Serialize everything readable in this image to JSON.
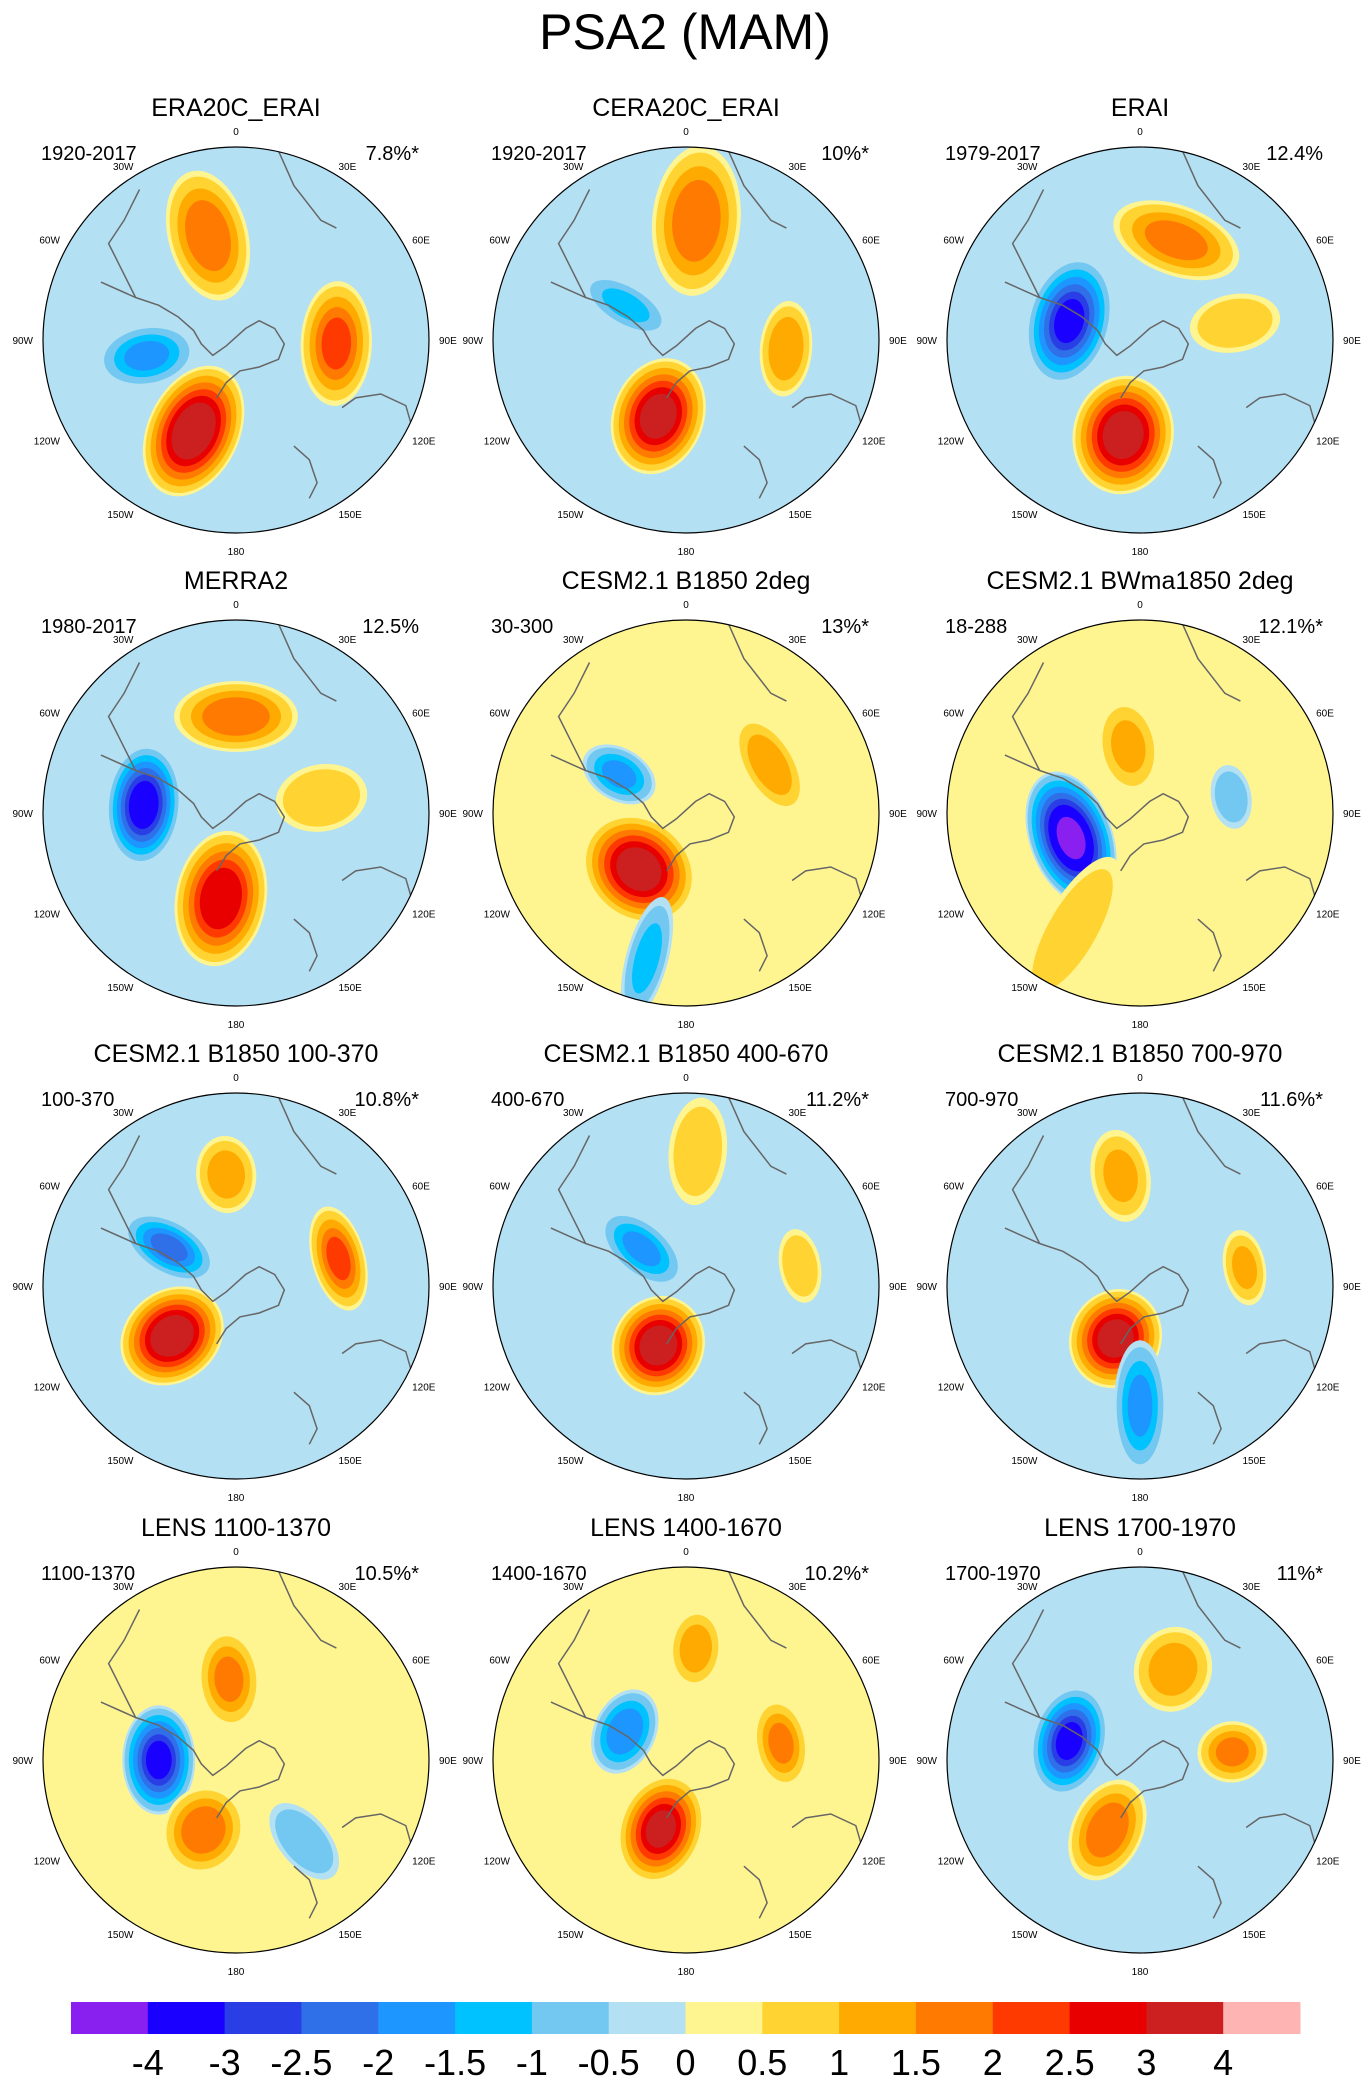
{
  "chart_data": {
    "type": "polar-contour-map",
    "title": "PSA2 (MAM)",
    "colorbar": {
      "labels": [
        "-4",
        "-3",
        "-2.5",
        "-2",
        "-1.5",
        "-1",
        "-0.5",
        "0",
        "0.5",
        "1",
        "1.5",
        "2",
        "2.5",
        "3",
        "4"
      ],
      "colors": [
        "#8a20f0",
        "#1a00ff",
        "#2a3ee6",
        "#2f6fe8",
        "#1e96ff",
        "#00c2ff",
        "#72c8f0",
        "#b4e0f4",
        "#fff590",
        "#ffd331",
        "#ffaa00",
        "#ff7a00",
        "#ff3a00",
        "#e80000",
        "#cc1f1f",
        "#ffb4b4"
      ]
    },
    "longitude_labels": [
      "0",
      "30E",
      "60E",
      "90E",
      "120E",
      "150E",
      "180",
      "150W",
      "120W",
      "90W",
      "60W",
      "30W"
    ],
    "panels": [
      {
        "title": "ERA20C_ERAI",
        "period": "1920-2017",
        "variance": "7.8%*",
        "base": "light-blue",
        "features": [
          {
            "lon": 205,
            "dist": 0.52,
            "peak": 3.5,
            "rx": 0.3,
            "ry": 0.2
          },
          {
            "lon": 260,
            "dist": 0.47,
            "peak": -1.5,
            "rx": 0.22,
            "ry": 0.14
          },
          {
            "lon": 345,
            "dist": 0.56,
            "peak": 1.8,
            "rx": 0.3,
            "ry": 0.18
          },
          {
            "lon": 92,
            "dist": 0.52,
            "peak": 2.0,
            "rx": 0.16,
            "ry": 0.28
          }
        ]
      },
      {
        "title": "CERA20C_ERAI",
        "period": "1920-2017",
        "variance": "10%*",
        "base": "light-blue",
        "features": [
          {
            "lon": 200,
            "dist": 0.42,
            "peak": 3.2,
            "rx": 0.26,
            "ry": 0.2
          },
          {
            "lon": 300,
            "dist": 0.36,
            "peak": -1.0,
            "rx": 0.22,
            "ry": 0.1
          },
          {
            "lon": 5,
            "dist": 0.62,
            "peak": 1.8,
            "rx": 0.34,
            "ry": 0.2
          },
          {
            "lon": 95,
            "dist": 0.52,
            "peak": 1.4,
            "rx": 0.12,
            "ry": 0.22
          }
        ]
      },
      {
        "title": "ERAI",
        "period": "1979-2017",
        "variance": "12.4%",
        "base": "light-blue",
        "features": [
          {
            "lon": 190,
            "dist": 0.5,
            "peak": 3.3,
            "rx": 0.26,
            "ry": 0.22
          },
          {
            "lon": 285,
            "dist": 0.38,
            "peak": -3.0,
            "rx": 0.18,
            "ry": 0.28
          },
          {
            "lon": 20,
            "dist": 0.55,
            "peak": 1.6,
            "rx": 0.16,
            "ry": 0.3
          },
          {
            "lon": 80,
            "dist": 0.5,
            "peak": 0.8,
            "rx": 0.22,
            "ry": 0.14
          }
        ]
      },
      {
        "title": "MERRA2",
        "period": "1980-2017",
        "variance": "12.5%",
        "base": "light-blue",
        "features": [
          {
            "lon": 190,
            "dist": 0.45,
            "peak": 2.9,
            "rx": 0.3,
            "ry": 0.2
          },
          {
            "lon": 275,
            "dist": 0.48,
            "peak": -3.3,
            "rx": 0.16,
            "ry": 0.26
          },
          {
            "lon": 0,
            "dist": 0.5,
            "peak": 1.8,
            "rx": 0.16,
            "ry": 0.28
          },
          {
            "lon": 80,
            "dist": 0.45,
            "peak": 0.9,
            "rx": 0.22,
            "ry": 0.16
          }
        ]
      },
      {
        "title": "CESM2.1 B1850 2deg",
        "period": "30-300",
        "variance": "13%*",
        "base": "yellow",
        "features": [
          {
            "lon": 220,
            "dist": 0.38,
            "peak": 3.3,
            "rx": 0.22,
            "ry": 0.26
          },
          {
            "lon": 300,
            "dist": 0.4,
            "peak": -1.5,
            "rx": 0.18,
            "ry": 0.12
          },
          {
            "lon": 60,
            "dist": 0.5,
            "peak": 1.3,
            "rx": 0.12,
            "ry": 0.24
          },
          {
            "lon": 195,
            "dist": 0.78,
            "peak": -1.0,
            "rx": 0.3,
            "ry": 0.1
          }
        ]
      },
      {
        "title": "CESM2.1 BWma1850 2deg",
        "period": "18-288",
        "variance": "12.1%*",
        "base": "yellow",
        "features": [
          {
            "lon": 250,
            "dist": 0.38,
            "peak": -4.0,
            "rx": 0.18,
            "ry": 0.3
          },
          {
            "lon": 350,
            "dist": 0.35,
            "peak": 1.0,
            "rx": 0.22,
            "ry": 0.14
          },
          {
            "lon": 80,
            "dist": 0.48,
            "peak": -0.6,
            "rx": 0.1,
            "ry": 0.16
          },
          {
            "lon": 210,
            "dist": 0.7,
            "peak": 0.8,
            "rx": 0.4,
            "ry": 0.14
          }
        ]
      },
      {
        "title": "CESM2.1 B1850 100-370",
        "period": "100-370",
        "variance": "10.8%*",
        "base": "light-blue",
        "features": [
          {
            "lon": 232,
            "dist": 0.42,
            "peak": 3.4,
            "rx": 0.24,
            "ry": 0.2
          },
          {
            "lon": 300,
            "dist": 0.4,
            "peak": -2.0,
            "rx": 0.22,
            "ry": 0.12
          },
          {
            "lon": 355,
            "dist": 0.58,
            "peak": 1.2,
            "rx": 0.18,
            "ry": 0.14
          },
          {
            "lon": 75,
            "dist": 0.55,
            "peak": 2.0,
            "rx": 0.12,
            "ry": 0.24
          }
        ]
      },
      {
        "title": "CESM2.1 B1850 400-670",
        "period": "400-670",
        "variance": "11.2%*",
        "base": "light-blue",
        "features": [
          {
            "lon": 205,
            "dist": 0.34,
            "peak": 3.3,
            "rx": 0.22,
            "ry": 0.2
          },
          {
            "lon": 310,
            "dist": 0.3,
            "peak": -1.5,
            "rx": 0.22,
            "ry": 0.12
          },
          {
            "lon": 80,
            "dist": 0.6,
            "peak": 0.8,
            "rx": 0.1,
            "ry": 0.18
          },
          {
            "lon": 5,
            "dist": 0.7,
            "peak": 0.8,
            "rx": 0.26,
            "ry": 0.14
          }
        ]
      },
      {
        "title": "CESM2.1 B1850 700-970",
        "period": "700-970",
        "variance": "11.6%*",
        "base": "light-blue",
        "features": [
          {
            "lon": 205,
            "dist": 0.3,
            "peak": 3.2,
            "rx": 0.22,
            "ry": 0.2
          },
          {
            "lon": 180,
            "dist": 0.62,
            "peak": -1.5,
            "rx": 0.3,
            "ry": 0.12
          },
          {
            "lon": 350,
            "dist": 0.58,
            "peak": 1.0,
            "rx": 0.22,
            "ry": 0.14
          },
          {
            "lon": 80,
            "dist": 0.55,
            "peak": 1.0,
            "rx": 0.1,
            "ry": 0.18
          }
        ]
      },
      {
        "title": "LENS 1100-1370",
        "period": "1100-1370",
        "variance": "10.5%*",
        "base": "yellow",
        "features": [
          {
            "lon": 270,
            "dist": 0.4,
            "peak": -3.0,
            "rx": 0.16,
            "ry": 0.24
          },
          {
            "lon": 205,
            "dist": 0.4,
            "peak": 1.8,
            "rx": 0.2,
            "ry": 0.18
          },
          {
            "lon": 355,
            "dist": 0.42,
            "peak": 1.5,
            "rx": 0.22,
            "ry": 0.14
          },
          {
            "lon": 140,
            "dist": 0.55,
            "peak": -0.8,
            "rx": 0.22,
            "ry": 0.12
          }
        ]
      },
      {
        "title": "LENS 1400-1670",
        "period": "1400-1670",
        "variance": "10.2%*",
        "base": "yellow",
        "features": [
          {
            "lon": 200,
            "dist": 0.38,
            "peak": 3.0,
            "rx": 0.24,
            "ry": 0.18
          },
          {
            "lon": 295,
            "dist": 0.35,
            "peak": -1.8,
            "rx": 0.14,
            "ry": 0.2
          },
          {
            "lon": 80,
            "dist": 0.5,
            "peak": 1.5,
            "rx": 0.12,
            "ry": 0.2
          },
          {
            "lon": 5,
            "dist": 0.58,
            "peak": 1.2,
            "rx": 0.18,
            "ry": 0.12
          }
        ]
      },
      {
        "title": "LENS 1700-1970",
        "period": "1700-1970",
        "variance": "11%*",
        "base": "light-blue",
        "features": [
          {
            "lon": 285,
            "dist": 0.38,
            "peak": -3.0,
            "rx": 0.16,
            "ry": 0.24
          },
          {
            "lon": 205,
            "dist": 0.4,
            "peak": 1.8,
            "rx": 0.24,
            "ry": 0.16
          },
          {
            "lon": 20,
            "dist": 0.5,
            "peak": 1.2,
            "rx": 0.2,
            "ry": 0.18
          },
          {
            "lon": 85,
            "dist": 0.48,
            "peak": 1.5,
            "rx": 0.16,
            "ry": 0.14
          }
        ]
      }
    ]
  }
}
